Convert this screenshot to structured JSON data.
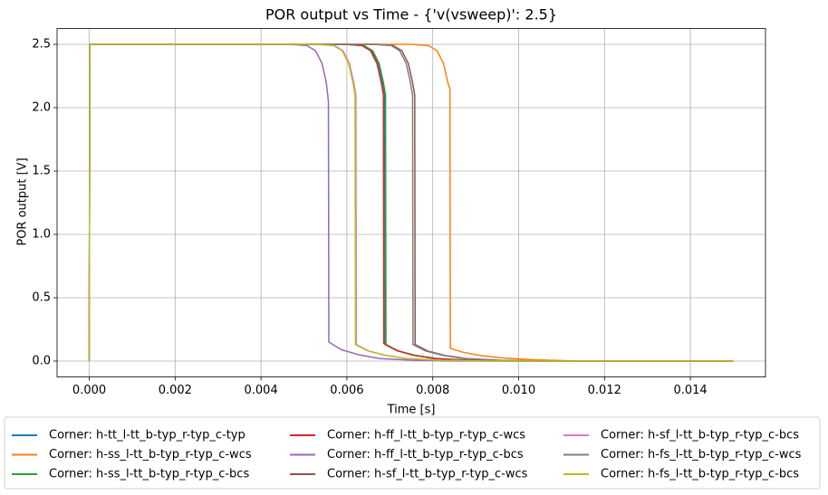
{
  "chart_data": {
    "type": "line",
    "title": "POR output vs Time - {'v(vsweep)': 2.5}",
    "xlabel": "Time [s]",
    "ylabel": "POR output [V]",
    "xlim": [
      -0.00075,
      0.01575
    ],
    "ylim": [
      -0.125,
      2.625
    ],
    "xticks": [
      {
        "value": 0,
        "label": "0.000"
      },
      {
        "value": 0.002,
        "label": "0.002"
      },
      {
        "value": 0.004,
        "label": "0.004"
      },
      {
        "value": 0.006,
        "label": "0.006"
      },
      {
        "value": 0.008,
        "label": "0.008"
      },
      {
        "value": 0.01,
        "label": "0.010"
      },
      {
        "value": 0.012,
        "label": "0.012"
      },
      {
        "value": 0.014,
        "label": "0.014"
      }
    ],
    "yticks": [
      {
        "value": 0,
        "label": "0.0"
      },
      {
        "value": 0.5,
        "label": "0.5"
      },
      {
        "value": 1,
        "label": "1.0"
      },
      {
        "value": 1.5,
        "label": "1.5"
      },
      {
        "value": 2,
        "label": "2.0"
      },
      {
        "value": 2.5,
        "label": "2.5"
      }
    ],
    "grid": true,
    "legend_columns": 3,
    "series": [
      {
        "name": "Corner: h-tt_l-tt_b-typ_r-typ_c-typ",
        "color": "#1f77b4",
        "x": [
          0,
          1e-05,
          0.00598,
          0.00638,
          0.00658,
          0.00673,
          0.00683,
          0.00688,
          0.00689,
          0.00718,
          0.00758,
          0.00808,
          0.00888,
          0.00988,
          0.015
        ],
        "values": [
          0,
          2.5,
          2.5,
          2.49,
          2.45,
          2.35,
          2.2,
          2.1,
          0.13,
          0.08,
          0.045,
          0.02,
          0.006,
          0,
          0
        ]
      },
      {
        "name": "Corner: h-ss_l-tt_b-typ_r-typ_c-wcs",
        "color": "#ff7f0e",
        "x": [
          0,
          1e-05,
          0.0075,
          0.0079,
          0.0081,
          0.00825,
          0.00835,
          0.0084,
          0.00841,
          0.0087,
          0.0091,
          0.0096,
          0.0104,
          0.0114,
          0.015
        ],
        "values": [
          0,
          2.5,
          2.5,
          2.49,
          2.45,
          2.35,
          2.2,
          2.15,
          0.1,
          0.07,
          0.045,
          0.025,
          0.01,
          0,
          0
        ]
      },
      {
        "name": "Corner: h-ss_l-tt_b-typ_r-typ_c-bcs",
        "color": "#2ca02c",
        "x": [
          0,
          1e-05,
          0.006,
          0.0064,
          0.0066,
          0.00675,
          0.00685,
          0.0069,
          0.00691,
          0.0072,
          0.0076,
          0.0081,
          0.0089,
          0.0099,
          0.015
        ],
        "values": [
          0,
          2.5,
          2.5,
          2.49,
          2.45,
          2.35,
          2.2,
          2.1,
          0.13,
          0.08,
          0.045,
          0.02,
          0.006,
          0,
          0
        ]
      },
      {
        "name": "Corner: h-ff_l-tt_b-typ_r-typ_c-wcs",
        "color": "#d62728",
        "x": [
          0,
          1e-05,
          0.00595,
          0.00635,
          0.00655,
          0.0067,
          0.0068,
          0.00685,
          0.00686,
          0.00715,
          0.00755,
          0.00805,
          0.00885,
          0.00985,
          0.015
        ],
        "values": [
          0,
          2.5,
          2.5,
          2.49,
          2.45,
          2.35,
          2.2,
          2.1,
          0.14,
          0.085,
          0.045,
          0.02,
          0.006,
          0,
          0
        ]
      },
      {
        "name": "Corner: h-ff_l-tt_b-typ_r-typ_c-bcs",
        "color": "#9467bd",
        "x": [
          0,
          1e-05,
          0.00467,
          0.00507,
          0.00527,
          0.00542,
          0.00552,
          0.00557,
          0.00558,
          0.00587,
          0.00627,
          0.00677,
          0.00757,
          0.00857,
          0.015
        ],
        "values": [
          0,
          2.5,
          2.5,
          2.49,
          2.45,
          2.35,
          2.2,
          2.05,
          0.15,
          0.09,
          0.05,
          0.02,
          0.006,
          0,
          0
        ]
      },
      {
        "name": "Corner: h-sf_l-tt_b-typ_r-typ_c-wcs",
        "color": "#8c564b",
        "x": [
          0,
          1e-05,
          0.00668,
          0.00708,
          0.00728,
          0.00743,
          0.00753,
          0.00758,
          0.00759,
          0.00788,
          0.00828,
          0.00878,
          0.00958,
          0.01058,
          0.015
        ],
        "values": [
          0,
          2.5,
          2.5,
          2.49,
          2.45,
          2.35,
          2.2,
          2.1,
          0.13,
          0.08,
          0.045,
          0.02,
          0.006,
          0,
          0
        ]
      },
      {
        "name": "Corner: h-sf_l-tt_b-typ_r-typ_c-bcs",
        "color": "#e377c2",
        "x": [
          0,
          1e-05,
          0.00531,
          0.00571,
          0.00591,
          0.00606,
          0.00616,
          0.00621,
          0.00622,
          0.00651,
          0.00691,
          0.00741,
          0.00821,
          0.00921,
          0.015
        ],
        "values": [
          0,
          2.5,
          2.5,
          2.49,
          2.45,
          2.35,
          2.2,
          2.1,
          0.13,
          0.08,
          0.045,
          0.02,
          0.006,
          0,
          0
        ]
      },
      {
        "name": "Corner: h-fs_l-tt_b-typ_r-typ_c-wcs",
        "color": "#7f7f7f",
        "x": [
          0,
          1e-05,
          0.00663,
          0.00703,
          0.00723,
          0.00738,
          0.00748,
          0.00753,
          0.00754,
          0.00783,
          0.00823,
          0.00873,
          0.00953,
          0.01053,
          0.015
        ],
        "values": [
          0,
          2.5,
          2.5,
          2.49,
          2.45,
          2.35,
          2.2,
          2.1,
          0.13,
          0.08,
          0.045,
          0.02,
          0.006,
          0,
          0
        ]
      },
      {
        "name": "Corner: h-fs_l-tt_b-typ_r-typ_c-bcs",
        "color": "#bcbd22",
        "x": [
          0,
          1e-05,
          0.00529,
          0.00569,
          0.00589,
          0.00604,
          0.00614,
          0.00619,
          0.0062,
          0.00649,
          0.00689,
          0.00739,
          0.00819,
          0.00919,
          0.015
        ],
        "values": [
          0,
          2.5,
          2.5,
          2.49,
          2.45,
          2.35,
          2.2,
          2.1,
          0.13,
          0.08,
          0.045,
          0.02,
          0.006,
          0,
          0
        ]
      }
    ]
  }
}
